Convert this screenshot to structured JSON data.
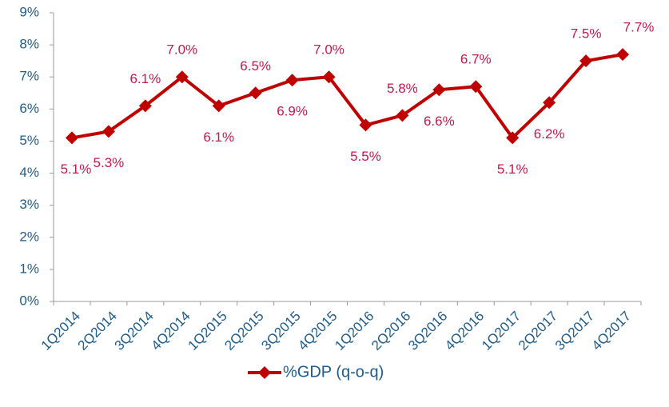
{
  "chart_data": {
    "type": "line",
    "categories": [
      "1Q2014",
      "2Q2014",
      "3Q2014",
      "4Q2014",
      "1Q2015",
      "2Q2015",
      "3Q2015",
      "4Q2015",
      "1Q2016",
      "2Q2016",
      "3Q2016",
      "4Q2016",
      "1Q2017",
      "2Q2017",
      "3Q2017",
      "4Q2017"
    ],
    "series": [
      {
        "name": "%GDP (q-o-q)",
        "color": "#c00000",
        "values": [
          5.1,
          5.3,
          6.1,
          7.0,
          6.1,
          6.5,
          6.9,
          7.0,
          5.5,
          5.8,
          6.6,
          6.7,
          5.1,
          6.2,
          7.5,
          7.7
        ],
        "value_labels": [
          "5.1%",
          "5.3%",
          "6.1%",
          "7.0%",
          "6.1%",
          "6.5%",
          "6.9%",
          "7.0%",
          "5.5%",
          "5.8%",
          "6.6%",
          "6.7%",
          "5.1%",
          "6.2%",
          "7.5%",
          "7.7%"
        ]
      }
    ],
    "ylim": [
      0,
      9
    ],
    "yticks": [
      {
        "value": 0,
        "label": "0%"
      },
      {
        "value": 1,
        "label": "1%"
      },
      {
        "value": 2,
        "label": "2%"
      },
      {
        "value": 3,
        "label": "3%"
      },
      {
        "value": 4,
        "label": "4%"
      },
      {
        "value": 5,
        "label": "5%"
      },
      {
        "value": 6,
        "label": "6%"
      },
      {
        "value": 7,
        "label": "7%"
      },
      {
        "value": 8,
        "label": "8%"
      },
      {
        "value": 9,
        "label": "9%"
      }
    ],
    "legend": "bottom"
  }
}
